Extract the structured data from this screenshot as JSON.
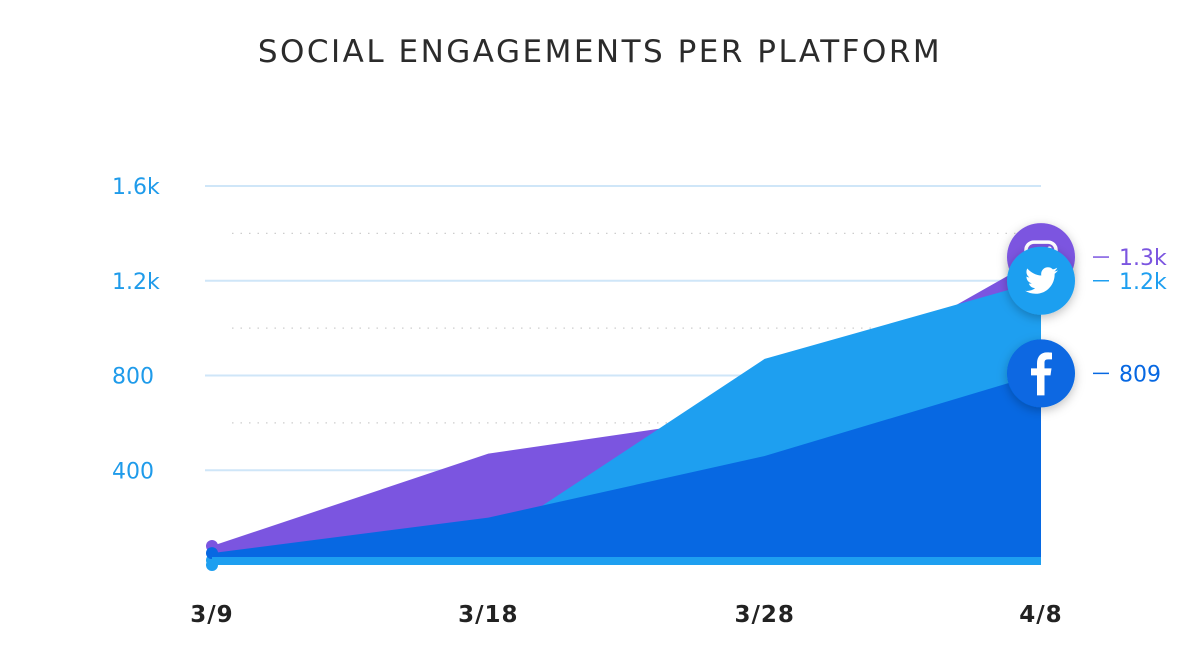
{
  "title": "SOCIAL ENGAGEMENTS PER PLATFORM",
  "chart_data": {
    "type": "area",
    "title": "SOCIAL ENGAGEMENTS PER PLATFORM",
    "xlabel": "",
    "ylabel": "",
    "categories": [
      "3/9",
      "3/18",
      "3/28",
      "4/8"
    ],
    "y_ticks": [
      400,
      800,
      1200,
      1600
    ],
    "y_tick_labels": [
      "400",
      "800",
      "1.2k",
      "1.6k"
    ],
    "ylim": [
      0,
      1600
    ],
    "grid": true,
    "series": [
      {
        "name": "",
        "icon": "instagram-icon",
        "color": "#7b55e0",
        "values": [
          80,
          470,
          640,
          1300
        ],
        "end_label": "1.3k"
      },
      {
        "name": "",
        "icon": "twitter-icon",
        "color": "#1e9ff0",
        "values": [
          20,
          100,
          870,
          1200
        ],
        "end_label": "1.2k"
      },
      {
        "name": "",
        "icon": "facebook-icon",
        "color": "#0768e2",
        "values": [
          50,
          200,
          460,
          809
        ],
        "end_label": "809"
      }
    ]
  }
}
